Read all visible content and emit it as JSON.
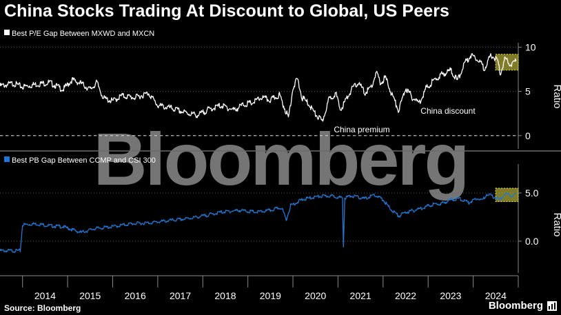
{
  "title": "China Stocks Trading At Discount to Global, US Peers",
  "source": "Source: Bloomberg",
  "brand": "Bloomberg",
  "watermark": "Bloomberg",
  "colors": {
    "background": "#000000",
    "series1": "#ffffff",
    "series2": "#1f78d6",
    "highlight": "#e8e04a",
    "axis": "#8c8c8c",
    "watermark": "#8a8a8a"
  },
  "chart_data": [
    {
      "type": "line",
      "legend": "Best P/E Gap Between MXWD and MXCN",
      "ylabel": "Ratio",
      "yticks": [
        0,
        5,
        10
      ],
      "ylim": [
        -1.5,
        10.5
      ],
      "annotations": [
        "China discount",
        "China premium"
      ],
      "reference_line": 0,
      "highlight_from": 2024.65,
      "series": [
        {
          "x": [
            2013.5,
            2013.8,
            2014.0,
            2014.3,
            2014.6,
            2014.9,
            2015.1,
            2015.3,
            2015.5,
            2015.65,
            2015.8,
            2016.0,
            2016.2,
            2016.5,
            2016.8,
            2017.0,
            2017.3,
            2017.6,
            2017.9,
            2018.1,
            2018.4,
            2018.7,
            2018.9,
            2019.1,
            2019.3,
            2019.5,
            2019.7,
            2019.9,
            2020.0,
            2020.1,
            2020.2,
            2020.35,
            2020.5,
            2020.65,
            2020.8,
            2020.95,
            2021.05,
            2021.15,
            2021.3,
            2021.45,
            2021.6,
            2021.75,
            2021.85,
            2021.95,
            2022.05,
            2022.2,
            2022.35,
            2022.5,
            2022.65,
            2022.8,
            2022.95,
            2023.1,
            2023.3,
            2023.5,
            2023.65,
            2023.8,
            2023.95,
            2024.1,
            2024.25,
            2024.4,
            2024.55,
            2024.6,
            2024.7,
            2024.85,
            2024.95
          ],
          "y": [
            5.6,
            5.9,
            5.5,
            5.8,
            6.0,
            5.2,
            6.3,
            5.9,
            5.2,
            6.0,
            4.2,
            3.9,
            4.5,
            4.3,
            4.8,
            3.4,
            3.1,
            2.6,
            2.3,
            2.9,
            3.4,
            2.9,
            3.5,
            3.7,
            4.3,
            4.0,
            4.6,
            2.0,
            5.4,
            6.4,
            4.3,
            3.6,
            2.4,
            1.6,
            4.1,
            4.8,
            2.9,
            3.8,
            5.2,
            6.0,
            4.8,
            5.6,
            7.1,
            5.9,
            6.6,
            4.6,
            2.8,
            5.4,
            4.3,
            3.7,
            5.3,
            6.1,
            6.9,
            7.4,
            6.2,
            8.1,
            9.1,
            8.7,
            7.6,
            9.1,
            8.4,
            6.9,
            8.6,
            8.0,
            8.4
          ]
        }
      ]
    },
    {
      "type": "line",
      "legend": "Best PB Gap Between CCMP and CSI 300",
      "ylabel": "Ratio",
      "yticks": [
        0.0,
        5.0
      ],
      "ylim": [
        -3.3,
        8.0
      ],
      "highlight_from": 2024.65,
      "series": [
        {
          "x": [
            2013.5,
            2013.7,
            2013.95,
            2014.0,
            2014.3,
            2014.6,
            2014.9,
            2015.1,
            2015.3,
            2015.6,
            2016.0,
            2016.4,
            2016.8,
            2017.2,
            2017.6,
            2018.0,
            2018.4,
            2018.8,
            2019.2,
            2019.5,
            2019.75,
            2019.85,
            2019.95,
            2020.2,
            2020.5,
            2020.8,
            2021.0,
            2021.1,
            2021.12,
            2021.15,
            2021.3,
            2021.6,
            2021.8,
            2022.0,
            2022.15,
            2022.35,
            2022.5,
            2022.7,
            2022.9,
            2023.1,
            2023.3,
            2023.5,
            2023.7,
            2023.9,
            2024.1,
            2024.2,
            2024.3,
            2024.4,
            2024.5,
            2024.6,
            2024.7,
            2024.85,
            2024.95
          ],
          "x_note": "",
          "y": [
            -1.0,
            -1.0,
            -1.0,
            1.7,
            1.8,
            1.6,
            1.5,
            1.2,
            0.9,
            1.3,
            1.5,
            1.8,
            1.9,
            2.1,
            2.3,
            2.6,
            3.0,
            3.2,
            3.0,
            3.2,
            3.5,
            2.2,
            3.7,
            4.3,
            4.6,
            4.7,
            4.6,
            4.4,
            -0.6,
            4.5,
            4.7,
            4.4,
            4.8,
            4.3,
            3.4,
            2.6,
            3.0,
            3.2,
            3.5,
            3.8,
            3.9,
            4.3,
            4.4,
            4.0,
            4.5,
            4.2,
            4.9,
            4.7,
            4.5,
            4.3,
            4.9,
            4.7,
            4.9
          ]
        }
      ]
    }
  ],
  "xaxis": {
    "labels": [
      "2014",
      "2015",
      "2016",
      "2017",
      "2018",
      "2019",
      "2020",
      "2021",
      "2022",
      "2023",
      "2024"
    ]
  }
}
